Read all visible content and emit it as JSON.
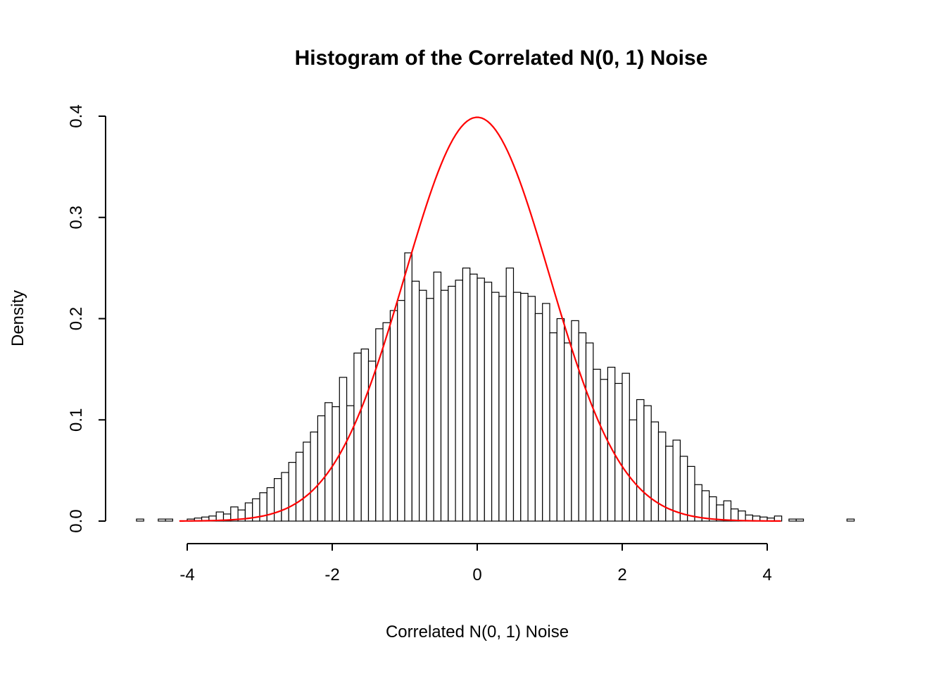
{
  "chart_data": {
    "type": "bar",
    "subtype": "histogram",
    "title": "Histogram of the Correlated N(0, 1) Noise",
    "xlabel": "Correlated N(0, 1) Noise",
    "ylabel": "Density",
    "xlim": [
      -4.7,
      5.3
    ],
    "ylim": [
      0,
      0.4
    ],
    "x_ticks": [
      -4,
      -2,
      0,
      2,
      4
    ],
    "x_tick_labels": [
      "-4",
      "-2",
      "0",
      "2",
      "4"
    ],
    "y_ticks": [
      0.0,
      0.1,
      0.2,
      0.3,
      0.4
    ],
    "y_tick_labels": [
      "0.0",
      "0.1",
      "0.2",
      "0.3",
      "0.4"
    ],
    "grid": "off",
    "legend": "none",
    "bar_fill": "#ffffff",
    "bar_stroke": "#000000",
    "bins_start": -4.7,
    "bin_width": 0.1,
    "densities": [
      0.002,
      0,
      0,
      0.002,
      0.002,
      0,
      0,
      0.002,
      0.003,
      0.004,
      0.005,
      0.009,
      0.007,
      0.014,
      0.011,
      0.018,
      0.022,
      0.028,
      0.033,
      0.042,
      0.048,
      0.058,
      0.068,
      0.078,
      0.088,
      0.104,
      0.117,
      0.113,
      0.142,
      0.114,
      0.166,
      0.17,
      0.158,
      0.19,
      0.196,
      0.208,
      0.218,
      0.265,
      0.237,
      0.228,
      0.22,
      0.246,
      0.228,
      0.232,
      0.238,
      0.25,
      0.244,
      0.24,
      0.236,
      0.226,
      0.222,
      0.25,
      0.226,
      0.225,
      0.222,
      0.205,
      0.215,
      0.186,
      0.2,
      0.176,
      0.198,
      0.186,
      0.176,
      0.15,
      0.14,
      0.152,
      0.136,
      0.146,
      0.1,
      0.12,
      0.114,
      0.098,
      0.088,
      0.074,
      0.08,
      0.064,
      0.054,
      0.036,
      0.03,
      0.024,
      0.016,
      0.02,
      0.012,
      0.01,
      0.006,
      0.005,
      0.004,
      0.003,
      0.005,
      0,
      0.002,
      0.002,
      0,
      0,
      0,
      0,
      0,
      0,
      0.002
    ],
    "curve": {
      "name": "standard-normal-density",
      "distribution": "N(0, 1)",
      "mean": 0,
      "sd": 1,
      "peak_density": 0.3989,
      "color": "#ff0000",
      "x_range": [
        -4.1,
        4.2
      ]
    }
  }
}
